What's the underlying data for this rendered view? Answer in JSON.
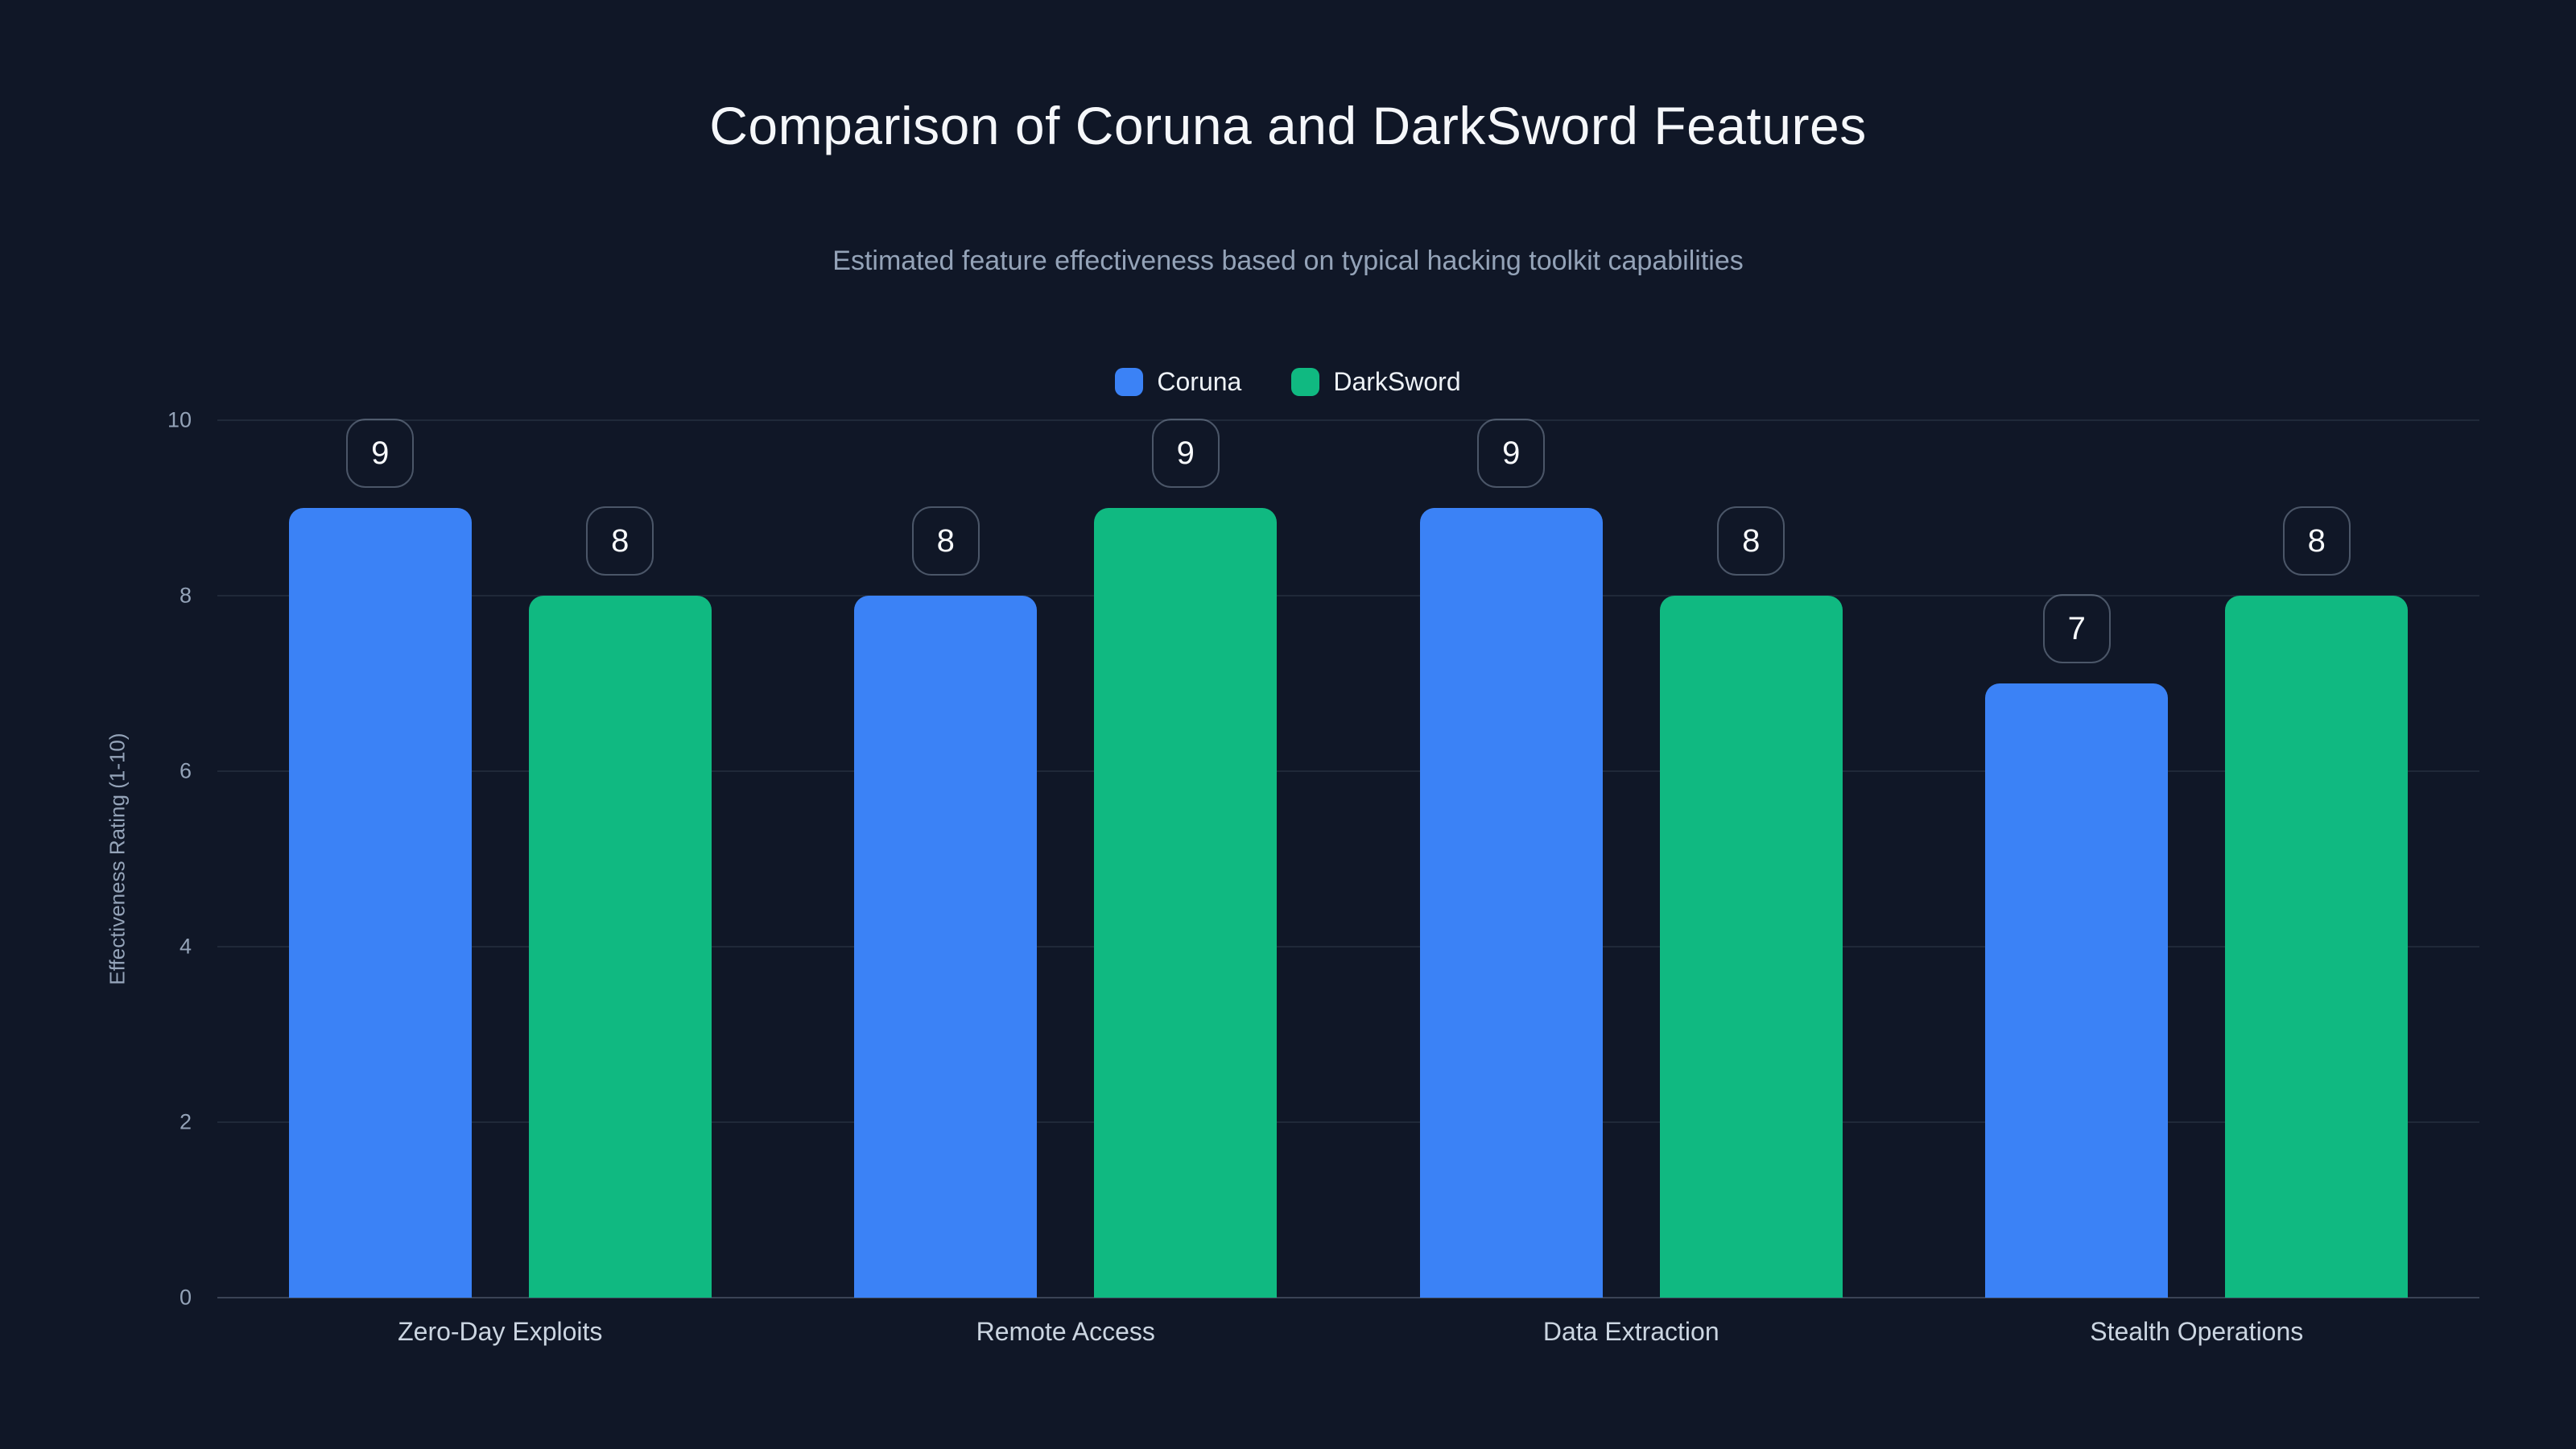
{
  "colors": {
    "background": "#101727",
    "title_text": "#f5f7fa",
    "subtitle_text": "#94a3b8",
    "axis_text": "#94a3b8",
    "x_label_text": "#cbd5e1",
    "grid_line": "rgba(148,163,184,0.13)",
    "coruna_blue": "#3b82f6",
    "darksword_green": "#10b981"
  },
  "chart_data": {
    "type": "bar",
    "title": "Comparison of Coruna and DarkSword Features",
    "subtitle": "Estimated feature effectiveness based on typical hacking toolkit capabilities",
    "categories": [
      "Zero-Day Exploits",
      "Remote Access",
      "Data Extraction",
      "Stealth Operations"
    ],
    "series": [
      {
        "name": "Coruna",
        "color": "#3b82f6",
        "values": [
          9,
          8,
          9,
          7
        ]
      },
      {
        "name": "DarkSword",
        "color": "#10b981",
        "values": [
          8,
          9,
          8,
          8
        ]
      }
    ],
    "xlabel": "",
    "ylabel": "Effectiveness Rating (1-10)",
    "ylim": [
      0,
      10
    ],
    "yticks": [
      0,
      2,
      4,
      6,
      8,
      10
    ],
    "grid": true,
    "legend_position": "top-center",
    "value_labels": true
  }
}
